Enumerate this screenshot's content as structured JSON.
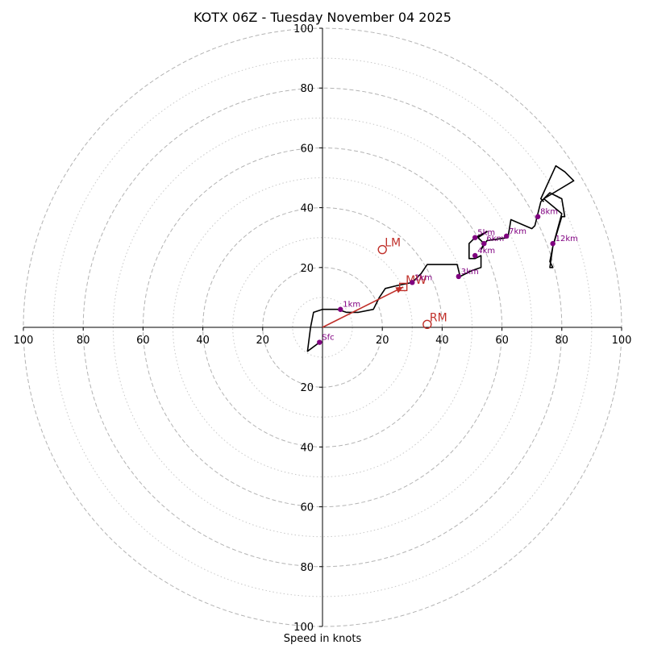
{
  "chart_data": {
    "type": "hodograph",
    "title": "KOTX 06Z - Tuesday November 04 2025",
    "xlabel": "Speed in knots",
    "xlim": [
      -100,
      100
    ],
    "ylim": [
      -100,
      100
    ],
    "rings_major": [
      20,
      40,
      60,
      80,
      100
    ],
    "rings_minor": [
      10,
      30,
      50,
      70,
      90
    ],
    "x_tick_labels": [
      "100",
      "80",
      "60",
      "40",
      "20",
      "20",
      "40",
      "60",
      "80",
      "100"
    ],
    "y_tick_labels": [
      "100",
      "80",
      "60",
      "40",
      "20",
      "20",
      "40",
      "60",
      "80",
      "100"
    ],
    "x_tick_values": [
      -100,
      -80,
      -60,
      -40,
      -20,
      20,
      40,
      60,
      80,
      100
    ],
    "y_tick_values": [
      100,
      80,
      60,
      40,
      20,
      -20,
      -40,
      -60,
      -80,
      -100
    ],
    "trace": [
      [
        -1,
        -5
      ],
      [
        -5,
        -8
      ],
      [
        -4,
        0
      ],
      [
        -3,
        5
      ],
      [
        0,
        6
      ],
      [
        3,
        6
      ],
      [
        5,
        6
      ],
      [
        8,
        5
      ],
      [
        12,
        5
      ],
      [
        17,
        6
      ],
      [
        19,
        10
      ],
      [
        21,
        13
      ],
      [
        25,
        14
      ],
      [
        30,
        15
      ],
      [
        33,
        18
      ],
      [
        35,
        21
      ],
      [
        40,
        21
      ],
      [
        45,
        21
      ],
      [
        46,
        17
      ],
      [
        50,
        19
      ],
      [
        53,
        20
      ],
      [
        53,
        24
      ],
      [
        51,
        23
      ],
      [
        49,
        23
      ],
      [
        49,
        28
      ],
      [
        51,
        30
      ],
      [
        55,
        32
      ],
      [
        52,
        30
      ],
      [
        54,
        28
      ],
      [
        53,
        26
      ],
      [
        55,
        29
      ],
      [
        62,
        30
      ],
      [
        63,
        36
      ],
      [
        70,
        33
      ],
      [
        71,
        34
      ],
      [
        73,
        42
      ],
      [
        76,
        45
      ],
      [
        80,
        43
      ],
      [
        81,
        37
      ],
      [
        80,
        37
      ],
      [
        77,
        27
      ],
      [
        76,
        22
      ],
      [
        77,
        20
      ],
      [
        76,
        20
      ],
      [
        77,
        27
      ],
      [
        80,
        38
      ],
      [
        74,
        43
      ],
      [
        84,
        49
      ],
      [
        81,
        52
      ],
      [
        78,
        54
      ],
      [
        73,
        43
      ],
      [
        74,
        42
      ]
    ],
    "height_markers": [
      {
        "label": "Sfc",
        "u": -1,
        "v": -5
      },
      {
        "label": "1km",
        "u": 6,
        "v": 6
      },
      {
        "label": "2km",
        "u": 30,
        "v": 15
      },
      {
        "label": "3km",
        "u": 45.5,
        "v": 17
      },
      {
        "label": "4km",
        "u": 51,
        "v": 24
      },
      {
        "label": "5km",
        "u": 51,
        "v": 30
      },
      {
        "label": "6km",
        "u": 54,
        "v": 28
      },
      {
        "label": "7km",
        "u": 61.5,
        "v": 30.5
      },
      {
        "label": "8km",
        "u": 72,
        "v": 37
      },
      {
        "label": "12km",
        "u": 77,
        "v": 28
      }
    ],
    "storm_motions": [
      {
        "label": "LM",
        "u": 20,
        "v": 26
      },
      {
        "label": "RM",
        "u": 35,
        "v": 1
      },
      {
        "label": "MW",
        "u": 27,
        "v": 13.5
      }
    ],
    "bunkers_vector": {
      "u": 27,
      "v": 13.5
    },
    "colors": {
      "trace": "#000000",
      "height_marker": "#800080",
      "storm_motion": "#c0302a",
      "grid_major": "#b3b3b3",
      "grid_minor": "#c8c8c8",
      "axes": "#000000"
    }
  }
}
